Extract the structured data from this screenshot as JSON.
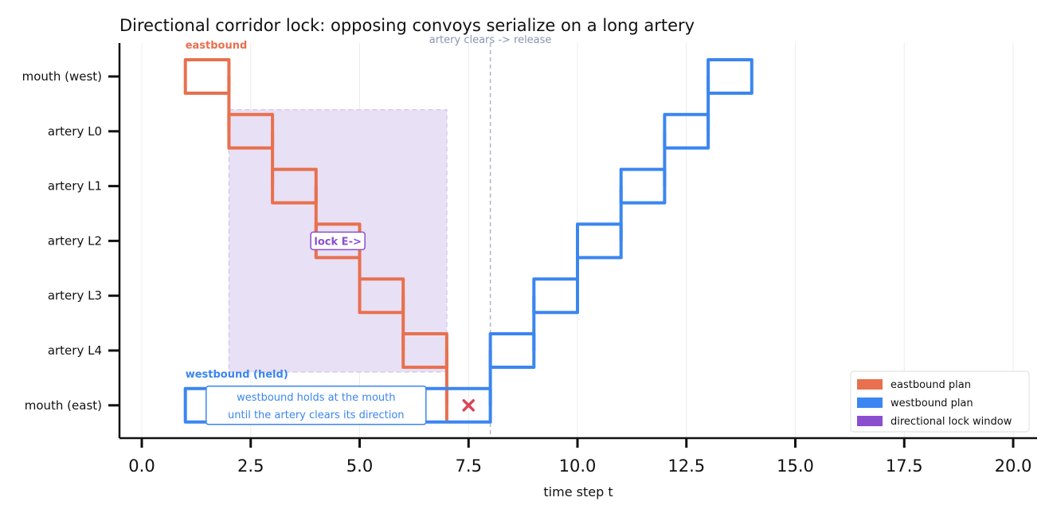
{
  "chart_data": {
    "type": "gantt",
    "title": "Directional corridor lock: opposing convoys serialize on a long artery",
    "xlabel": "time step  t",
    "ylabel": "",
    "xlim": [
      -0.5,
      20.5
    ],
    "x_ticks": [
      0.0,
      2.5,
      5.0,
      7.5,
      10.0,
      12.5,
      15.0,
      17.5,
      20.0
    ],
    "x_tick_labels": [
      "0.0",
      "2.5",
      "5.0",
      "7.5",
      "10.0",
      "12.5",
      "15.0",
      "17.5",
      "20.0"
    ],
    "rows": [
      "mouth (west)",
      "artery L0",
      "artery L1",
      "artery L2",
      "artery L3",
      "artery L4",
      "mouth (east)"
    ],
    "grid": "vertical",
    "legend_position": "lower-right",
    "colors": {
      "eastbound": "#e8704f",
      "westbound": "#3b86f0",
      "lock": "#8a4fcf",
      "lock_fill": "#e8e0f4",
      "release_line": "#b0b4c8",
      "conflict_marker": "#d94458",
      "annotation_text": "#3b86f0",
      "release_text": "#8a94b2"
    },
    "series": [
      {
        "name": "eastbound plan",
        "label": "eastbound",
        "segments": [
          {
            "row": 0,
            "start": 1,
            "end": 2
          },
          {
            "row": 1,
            "start": 2,
            "end": 3
          },
          {
            "row": 2,
            "start": 3,
            "end": 4
          },
          {
            "row": 3,
            "start": 4,
            "end": 5
          },
          {
            "row": 4,
            "start": 5,
            "end": 6
          },
          {
            "row": 5,
            "start": 6,
            "end": 7
          },
          {
            "row": 6,
            "start": 7,
            "end": 7
          }
        ]
      },
      {
        "name": "westbound plan",
        "label": "westbound (held)",
        "segments": [
          {
            "row": 6,
            "start": 1,
            "end": 8
          },
          {
            "row": 5,
            "start": 8,
            "end": 9
          },
          {
            "row": 4,
            "start": 9,
            "end": 10
          },
          {
            "row": 3,
            "start": 10,
            "end": 11
          },
          {
            "row": 2,
            "start": 11,
            "end": 12
          },
          {
            "row": 1,
            "start": 12,
            "end": 13
          },
          {
            "row": 0,
            "start": 13,
            "end": 14
          }
        ]
      }
    ],
    "lock_window": {
      "name": "directional lock window",
      "x_start": 2,
      "x_end": 7,
      "row_top": 1,
      "row_bottom": 5,
      "label": "lock E->",
      "label_x": 4.5,
      "label_row": 3
    },
    "release_line": {
      "x": 8,
      "label": "artery clears -> release"
    },
    "conflict_marker": {
      "x": 7.5,
      "row": 6
    },
    "annotation": {
      "lines": [
        "westbound holds at the mouth",
        "until the artery clears its direction"
      ],
      "x": 4.0,
      "row": 6
    }
  }
}
